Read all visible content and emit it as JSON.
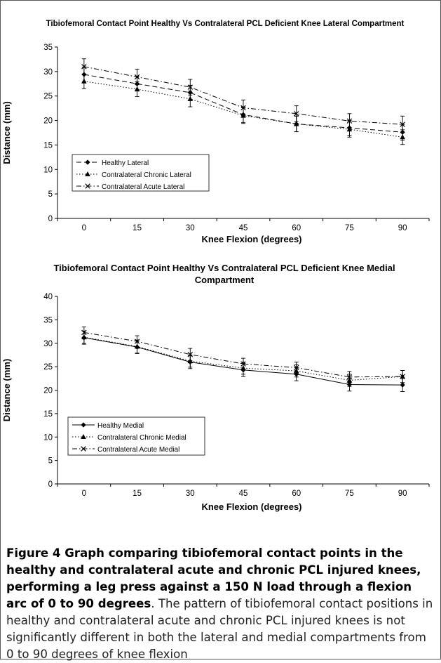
{
  "chart_data": [
    {
      "type": "line",
      "title": "Tibiofemoral Contact Point Healthy Vs Contralateral PCL Deficient Knee Lateral Compartment",
      "xlabel": "Knee Flexion (degrees)",
      "ylabel": "Distance (mm)",
      "categories": [
        "0",
        "15",
        "30",
        "45",
        "60",
        "75",
        "90"
      ],
      "ylim": [
        0,
        35
      ],
      "yticks": [
        "0",
        "5",
        "10",
        "15",
        "20",
        "25",
        "30",
        "35"
      ],
      "legend_position": "left-middle",
      "grid": false,
      "series": [
        {
          "name": "Healthy Lateral",
          "values": [
            29.4,
            27.5,
            25.7,
            21.2,
            19.3,
            18.5,
            17.6
          ],
          "error": [
            1.5,
            1.5,
            1.5,
            1.6,
            1.6,
            1.5,
            1.6
          ],
          "style": "dashed",
          "marker": "diamond"
        },
        {
          "name": "Contralateral Chronic Lateral",
          "values": [
            28.0,
            26.4,
            24.4,
            21.0,
            19.3,
            18.2,
            16.6
          ],
          "error": [
            1.5,
            1.5,
            1.6,
            1.6,
            1.6,
            1.6,
            1.5
          ],
          "style": "dotted",
          "marker": "triangle"
        },
        {
          "name": "Contralateral Acute Lateral",
          "values": [
            31.0,
            28.9,
            26.8,
            22.6,
            21.4,
            19.9,
            19.2
          ],
          "error": [
            1.6,
            1.6,
            1.6,
            1.6,
            1.6,
            1.5,
            1.7
          ],
          "style": "dashdot",
          "marker": "x"
        }
      ]
    },
    {
      "type": "line",
      "title": "Tibiofemoral Contact Point Healthy Vs Contralateral PCL Deficient Knee Medial Compartment",
      "xlabel": "Knee Flexion (degrees)",
      "ylabel": "Distance (mm)",
      "categories": [
        "0",
        "15",
        "30",
        "45",
        "60",
        "75",
        "90"
      ],
      "ylim": [
        0,
        40
      ],
      "yticks": [
        "0",
        "5",
        "10",
        "15",
        "20",
        "25",
        "30",
        "35",
        "40"
      ],
      "legend_position": "left-middle",
      "grid": false,
      "series": [
        {
          "name": "Healthy Medial",
          "values": [
            31.2,
            29.2,
            26.0,
            24.3,
            23.4,
            21.2,
            21.1
          ],
          "error": [
            1.4,
            1.4,
            1.4,
            1.4,
            1.4,
            1.4,
            1.4
          ],
          "style": "solid",
          "marker": "diamond"
        },
        {
          "name": "Contralateral Chronic Medial",
          "values": [
            31.3,
            29.3,
            26.2,
            24.7,
            24.1,
            22.1,
            22.9
          ],
          "error": [
            1.3,
            1.4,
            1.3,
            1.3,
            1.3,
            1.3,
            1.3
          ],
          "style": "dotted",
          "marker": "triangle"
        },
        {
          "name": "Contralateral Acute Medial",
          "values": [
            32.3,
            30.4,
            27.6,
            25.6,
            24.8,
            22.8,
            22.9
          ],
          "error": [
            1.2,
            1.2,
            1.3,
            1.2,
            1.2,
            1.2,
            1.3
          ],
          "style": "dashdot",
          "marker": "x"
        }
      ]
    }
  ],
  "caption": {
    "bold": "Figure 4 Graph comparing tibiofemoral contact points in the healthy and contralateral acute and chronic PCL injured knees, performing a leg press against a 150 N load through a flexion arc of 0 to 90 degrees",
    "rest": ". The pattern of tibiofemoral contact positions in healthy and contralateral acute and chronic PCL injured knees is not significantly different in both the lateral and medial compartments from 0 to 90 degrees of knee flexion"
  }
}
